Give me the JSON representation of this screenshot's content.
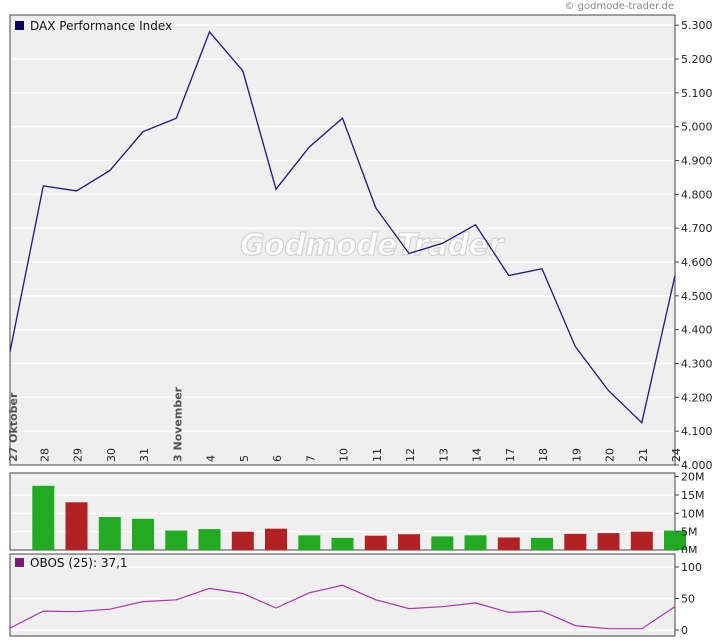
{
  "credit": "© godmode-trader.de",
  "watermark": "GodmodeTrader",
  "colors": {
    "price_line": "#1a1a7a",
    "legend_swatch": "#0b0b55",
    "volume_up": "#22aa22",
    "volume_down": "#b22222",
    "obos_line": "#b030b0",
    "obos_swatch": "#7a1a7a"
  },
  "chart_data": [
    {
      "type": "line",
      "legend": "DAX Performance Index",
      "x_labels": [
        "27 Oktober",
        "28",
        "29",
        "30",
        "31",
        "3 November",
        "4",
        "5",
        "6",
        "7",
        "10",
        "11",
        "12",
        "13",
        "14",
        "17",
        "18",
        "19",
        "20",
        "21",
        "24"
      ],
      "series": [
        {
          "name": "DAX Performance Index",
          "values": [
            4335,
            4825,
            4810,
            4870,
            4985,
            5025,
            5280,
            5165,
            4815,
            4940,
            5025,
            4760,
            4625,
            4655,
            4710,
            4560,
            4580,
            4350,
            4220,
            4125,
            4560
          ]
        }
      ],
      "ylim": [
        4000,
        5330
      ],
      "yticks": [
        "4.000",
        "4.100",
        "4.200",
        "4.300",
        "4.400",
        "4.500",
        "4.600",
        "4.700",
        "4.800",
        "4.900",
        "5.000",
        "5.100",
        "5.200",
        "5.300"
      ],
      "ytick_values": [
        4000,
        4100,
        4200,
        4300,
        4400,
        4500,
        4600,
        4700,
        4800,
        4900,
        5000,
        5100,
        5200,
        5300
      ],
      "grid": true,
      "legend_position": "top-left"
    },
    {
      "type": "bar",
      "name": "volume",
      "values": [
        17.5,
        13,
        9,
        8.5,
        5.3,
        5.7,
        5,
        5.8,
        4,
        3.3,
        3.9,
        4.3,
        3.7,
        4,
        3.4,
        3.3,
        4.4,
        4.6,
        5,
        5.3
      ],
      "directions": [
        "up",
        "down",
        "up",
        "up",
        "up",
        "up",
        "down",
        "down",
        "up",
        "up",
        "down",
        "down",
        "up",
        "up",
        "down",
        "up",
        "down",
        "down",
        "down",
        "up"
      ],
      "ylim": [
        0,
        21
      ],
      "yticks": [
        "0M",
        "5M",
        "10M",
        "15M",
        "20M"
      ],
      "ytick_values": [
        0,
        5,
        10,
        15,
        20
      ],
      "grid": true
    },
    {
      "type": "line",
      "legend": "OBOS (25): 37,1",
      "series": [
        {
          "name": "OBOS (25)",
          "values": [
            3,
            30,
            29,
            33,
            45,
            48,
            66,
            58,
            35,
            59,
            71,
            48,
            34,
            37,
            43,
            28,
            30,
            7,
            2,
            2,
            37.1
          ]
        }
      ],
      "ylim": [
        0,
        110
      ],
      "yticks": [
        "0",
        "50",
        "100"
      ],
      "ytick_values": [
        0,
        50,
        100
      ],
      "grid": true,
      "legend_position": "top-left"
    }
  ]
}
